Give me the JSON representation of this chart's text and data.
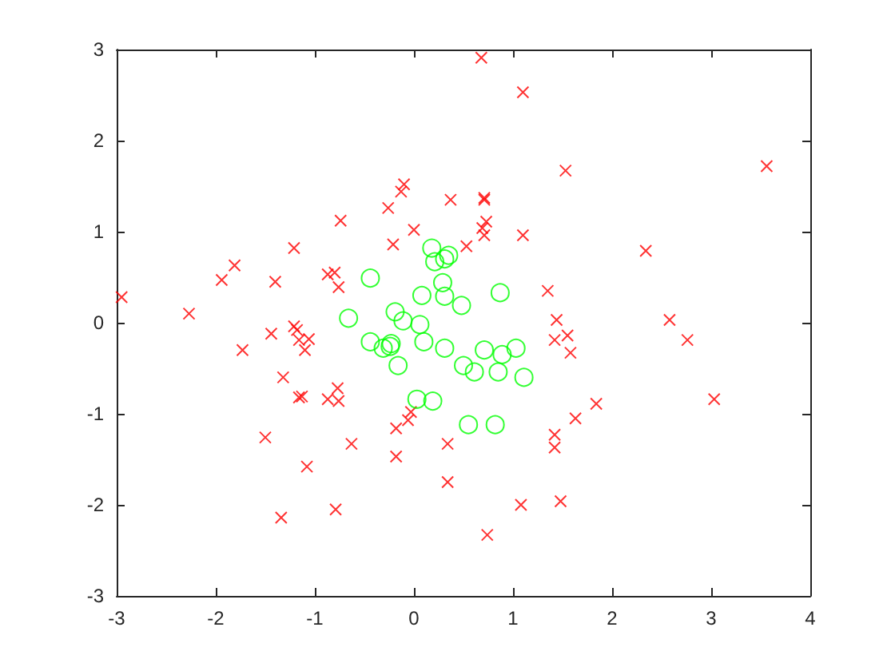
{
  "chart_data": {
    "type": "scatter",
    "xlim": [
      -3,
      4
    ],
    "ylim": [
      -3,
      3
    ],
    "xticks": [
      -3,
      -2,
      -1,
      0,
      1,
      2,
      3,
      4
    ],
    "yticks": [
      -3,
      -2,
      -1,
      0,
      1,
      2,
      3
    ],
    "series": [
      {
        "color": "#ff0000",
        "marker": "cross",
        "x": [
          -0.87,
          -0.8,
          -0.76,
          -0.74,
          -0.26,
          -0.13,
          -0.1,
          -0.21,
          0.0,
          0.37,
          -1.21,
          -1.4,
          -1.81,
          -1.94,
          -2.27,
          -2.95,
          -1.21,
          0.68,
          1.1,
          1.53,
          3.56,
          0.71,
          0.71,
          0.73,
          0.69,
          0.71,
          1.1,
          0.53,
          2.34,
          1.35,
          1.44,
          2.58,
          1.42,
          1.55,
          1.58,
          2.76,
          1.84,
          1.63,
          1.42,
          1.42,
          3.03,
          1.08,
          1.48,
          0.74,
          0.34,
          0.34,
          -1.44,
          -1.18,
          -1.16,
          -1.06,
          -1.1,
          -1.73,
          -1.32,
          -1.16,
          -1.13,
          -0.87,
          -0.77,
          -0.76,
          -0.63,
          -1.5,
          -1.08,
          -1.34,
          -0.79,
          -0.18,
          -0.18,
          -0.06,
          -0.03
        ],
        "values": [
          0.53,
          0.55,
          0.39,
          1.12,
          1.26,
          1.44,
          1.52,
          0.86,
          1.02,
          1.35,
          0.82,
          0.45,
          0.63,
          0.47,
          0.1,
          0.28,
          -0.04,
          2.91,
          2.53,
          1.67,
          1.72,
          1.37,
          1.35,
          1.11,
          1.04,
          0.96,
          0.96,
          0.84,
          0.79,
          0.35,
          0.03,
          0.03,
          -0.19,
          -0.14,
          -0.33,
          -0.19,
          -0.89,
          -1.05,
          -1.23,
          -1.37,
          -0.84,
          -2.0,
          -1.96,
          -2.33,
          -1.33,
          -1.75,
          -0.12,
          -0.08,
          -0.19,
          -0.18,
          -0.3,
          -0.3,
          -0.6,
          -0.82,
          -0.81,
          -0.84,
          -0.72,
          -0.86,
          -1.33,
          -1.26,
          -1.58,
          -2.14,
          -2.05,
          -1.47,
          -1.16,
          -1.07,
          -0.98
        ]
      },
      {
        "color": "#00ff00",
        "marker": "circle",
        "x": [
          -0.44,
          0.18,
          0.21,
          0.31,
          0.35,
          0.29,
          0.31,
          0.08,
          0.48,
          -0.66,
          -0.19,
          -0.11,
          0.06,
          -0.44,
          -0.31,
          -0.24,
          -0.23,
          -0.16,
          0.1,
          0.31,
          0.03,
          0.19,
          0.5,
          0.71,
          0.89,
          1.03,
          0.61,
          0.85,
          1.11,
          0.55,
          0.82,
          0.87
        ],
        "values": [
          0.49,
          0.82,
          0.67,
          0.7,
          0.74,
          0.44,
          0.29,
          0.3,
          0.19,
          0.05,
          0.12,
          0.02,
          -0.02,
          -0.21,
          -0.28,
          -0.26,
          -0.23,
          -0.47,
          -0.21,
          -0.28,
          -0.84,
          -0.86,
          -0.47,
          -0.3,
          -0.35,
          -0.28,
          -0.54,
          -0.54,
          -0.6,
          -1.12,
          -1.12,
          0.33
        ]
      }
    ]
  }
}
